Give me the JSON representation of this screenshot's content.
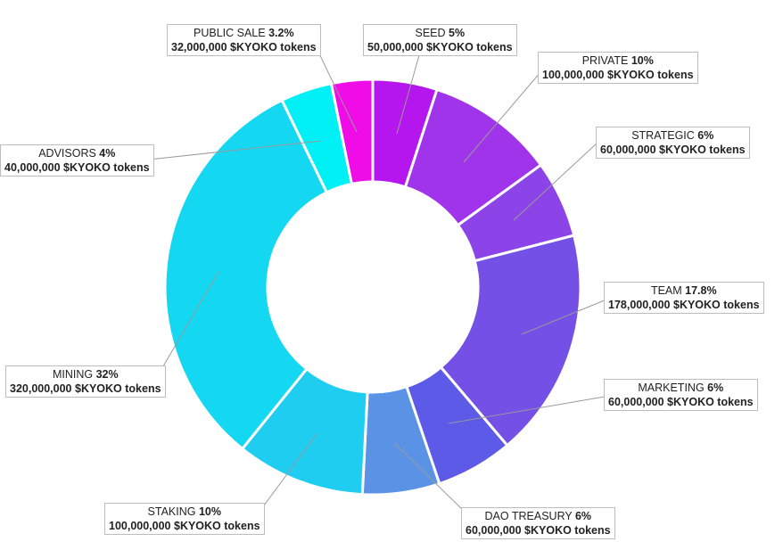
{
  "chart_data": {
    "type": "pie",
    "variant": "donut",
    "start": "top",
    "direction": "clockwise",
    "unit_suffix": "$KYOKO tokens",
    "slices": [
      {
        "name": "SEED",
        "pct_label": "5%",
        "value": 5,
        "tokens": "50,000,000 $KYOKO tokens",
        "color": "#b516ee"
      },
      {
        "name": "PRIVATE",
        "pct_label": "10%",
        "value": 10,
        "tokens": "100,000,000 $KYOKO tokens",
        "color": "#a034ea"
      },
      {
        "name": "STRATEGIC",
        "pct_label": "6%",
        "value": 6,
        "tokens": "60,000,000 $KYOKO tokens",
        "color": "#8c44e8"
      },
      {
        "name": "TEAM",
        "pct_label": "17.8%",
        "value": 17.8,
        "tokens": "178,000,000 $KYOKO tokens",
        "color": "#7450e6"
      },
      {
        "name": "MARKETING",
        "pct_label": "6%",
        "value": 6,
        "tokens": "60,000,000 $KYOKO tokens",
        "color": "#5c5ae6"
      },
      {
        "name": "DAO TREASURY",
        "pct_label": "6%",
        "value": 6,
        "tokens": "60,000,000 $KYOKO tokens",
        "color": "#5a92e6"
      },
      {
        "name": "STAKING",
        "pct_label": "10%",
        "value": 10,
        "tokens": "100,000,000 $KYOKO tokens",
        "color": "#1ecdf0"
      },
      {
        "name": "MINING",
        "pct_label": "32%",
        "value": 32,
        "tokens": "320,000,000 $KYOKO tokens",
        "color": "#14d8f2"
      },
      {
        "name": "ADVISORS",
        "pct_label": "4%",
        "value": 4,
        "tokens": "40,000,000 $KYOKO tokens",
        "color": "#00f0f6"
      },
      {
        "name": "PUBLIC SALE",
        "pct_label": "3.2%",
        "value": 3.2,
        "tokens": "32,000,000 $KYOKO tokens",
        "color": "#f00ce6"
      }
    ]
  }
}
